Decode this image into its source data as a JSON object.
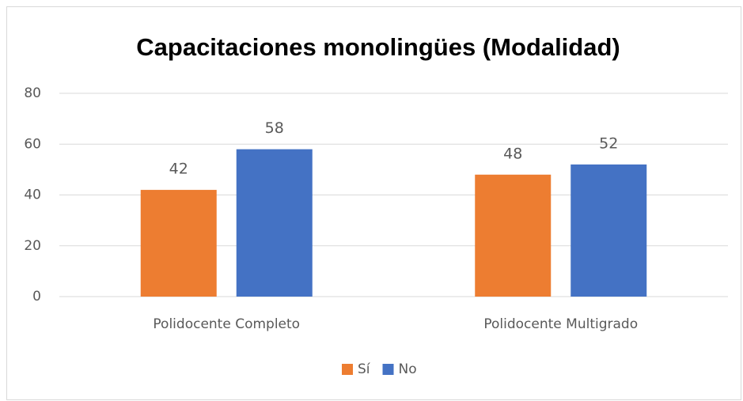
{
  "chart_data": {
    "type": "bar",
    "title": "Capacitaciones monolingües (Modalidad)",
    "categories": [
      "Polidocente Completo",
      "Polidocente Multigrado"
    ],
    "series": [
      {
        "name": "Sí",
        "color": "#ed7d31",
        "values": [
          42,
          48
        ]
      },
      {
        "name": "No",
        "color": "#4472c4",
        "values": [
          58,
          52
        ]
      }
    ],
    "ylim": [
      0,
      80
    ],
    "yticks": [
      0,
      20,
      40,
      60,
      80
    ],
    "grid": true,
    "legend": "bottom"
  }
}
